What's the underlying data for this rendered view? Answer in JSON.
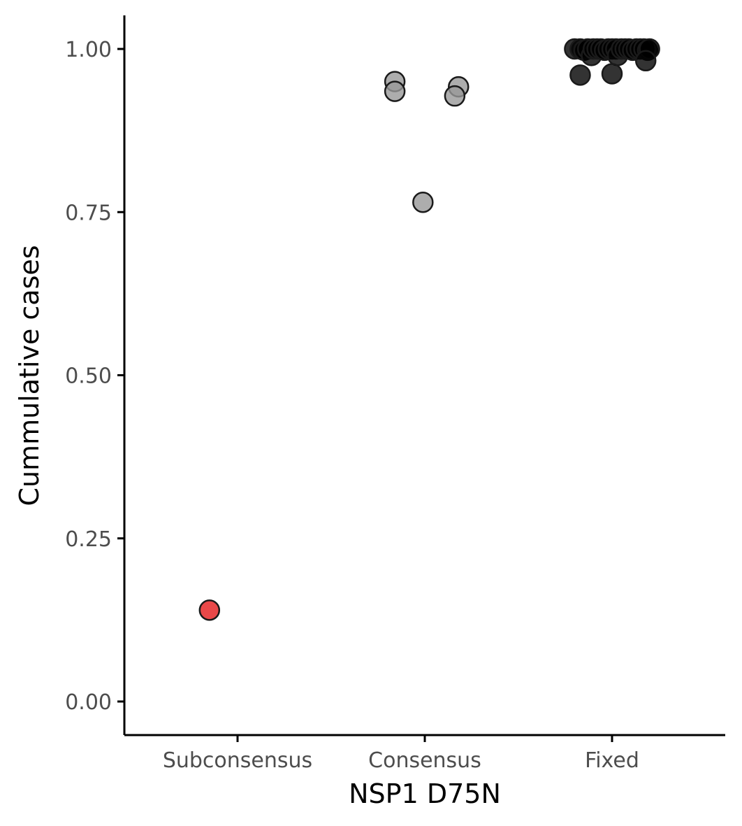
{
  "chart_data": {
    "type": "scatter",
    "xlabel": "NSP1 D75N",
    "ylabel": "Cummulative cases",
    "categories": [
      "Subconsensus",
      "Consensus",
      "Fixed"
    ],
    "ylim": [
      -0.05,
      1.05
    ],
    "yticks": [
      0,
      0.25,
      0.5,
      0.75,
      1
    ],
    "ytick_labels": [
      "0.00",
      "0.25",
      "0.50",
      "0.75",
      "1.00"
    ],
    "grid": false,
    "legend": "none",
    "series": [
      {
        "category": "Subconsensus",
        "color": "#e41a1c",
        "points": [
          {
            "jitter": -0.15,
            "y": 0.14
          }
        ]
      },
      {
        "category": "Consensus",
        "color": "#999999",
        "points": [
          {
            "jitter": -0.16,
            "y": 0.95
          },
          {
            "jitter": -0.16,
            "y": 0.935
          },
          {
            "jitter": 0.18,
            "y": 0.942
          },
          {
            "jitter": 0.16,
            "y": 0.928
          },
          {
            "jitter": -0.01,
            "y": 0.765
          }
        ]
      },
      {
        "category": "Fixed",
        "color": "#000000",
        "points": [
          {
            "jitter": -0.2,
            "y": 1.0
          },
          {
            "jitter": -0.17,
            "y": 1.0
          },
          {
            "jitter": -0.15,
            "y": 0.998
          },
          {
            "jitter": -0.13,
            "y": 1.0
          },
          {
            "jitter": -0.11,
            "y": 0.99
          },
          {
            "jitter": -0.1,
            "y": 1.0
          },
          {
            "jitter": -0.08,
            "y": 1.0
          },
          {
            "jitter": -0.06,
            "y": 1.0
          },
          {
            "jitter": -0.04,
            "y": 0.998
          },
          {
            "jitter": -0.02,
            "y": 1.0
          },
          {
            "jitter": 0.0,
            "y": 1.0
          },
          {
            "jitter": 0.02,
            "y": 1.0
          },
          {
            "jitter": 0.03,
            "y": 0.99
          },
          {
            "jitter": 0.05,
            "y": 1.0
          },
          {
            "jitter": 0.07,
            "y": 1.0
          },
          {
            "jitter": 0.09,
            "y": 1.0
          },
          {
            "jitter": 0.11,
            "y": 0.998
          },
          {
            "jitter": 0.13,
            "y": 1.0
          },
          {
            "jitter": 0.15,
            "y": 1.0
          },
          {
            "jitter": 0.17,
            "y": 1.0
          },
          {
            "jitter": 0.19,
            "y": 0.998
          },
          {
            "jitter": 0.2,
            "y": 1.0
          },
          {
            "jitter": -0.17,
            "y": 0.96
          },
          {
            "jitter": 0.0,
            "y": 0.962
          },
          {
            "jitter": 0.18,
            "y": 0.982
          }
        ]
      }
    ]
  }
}
